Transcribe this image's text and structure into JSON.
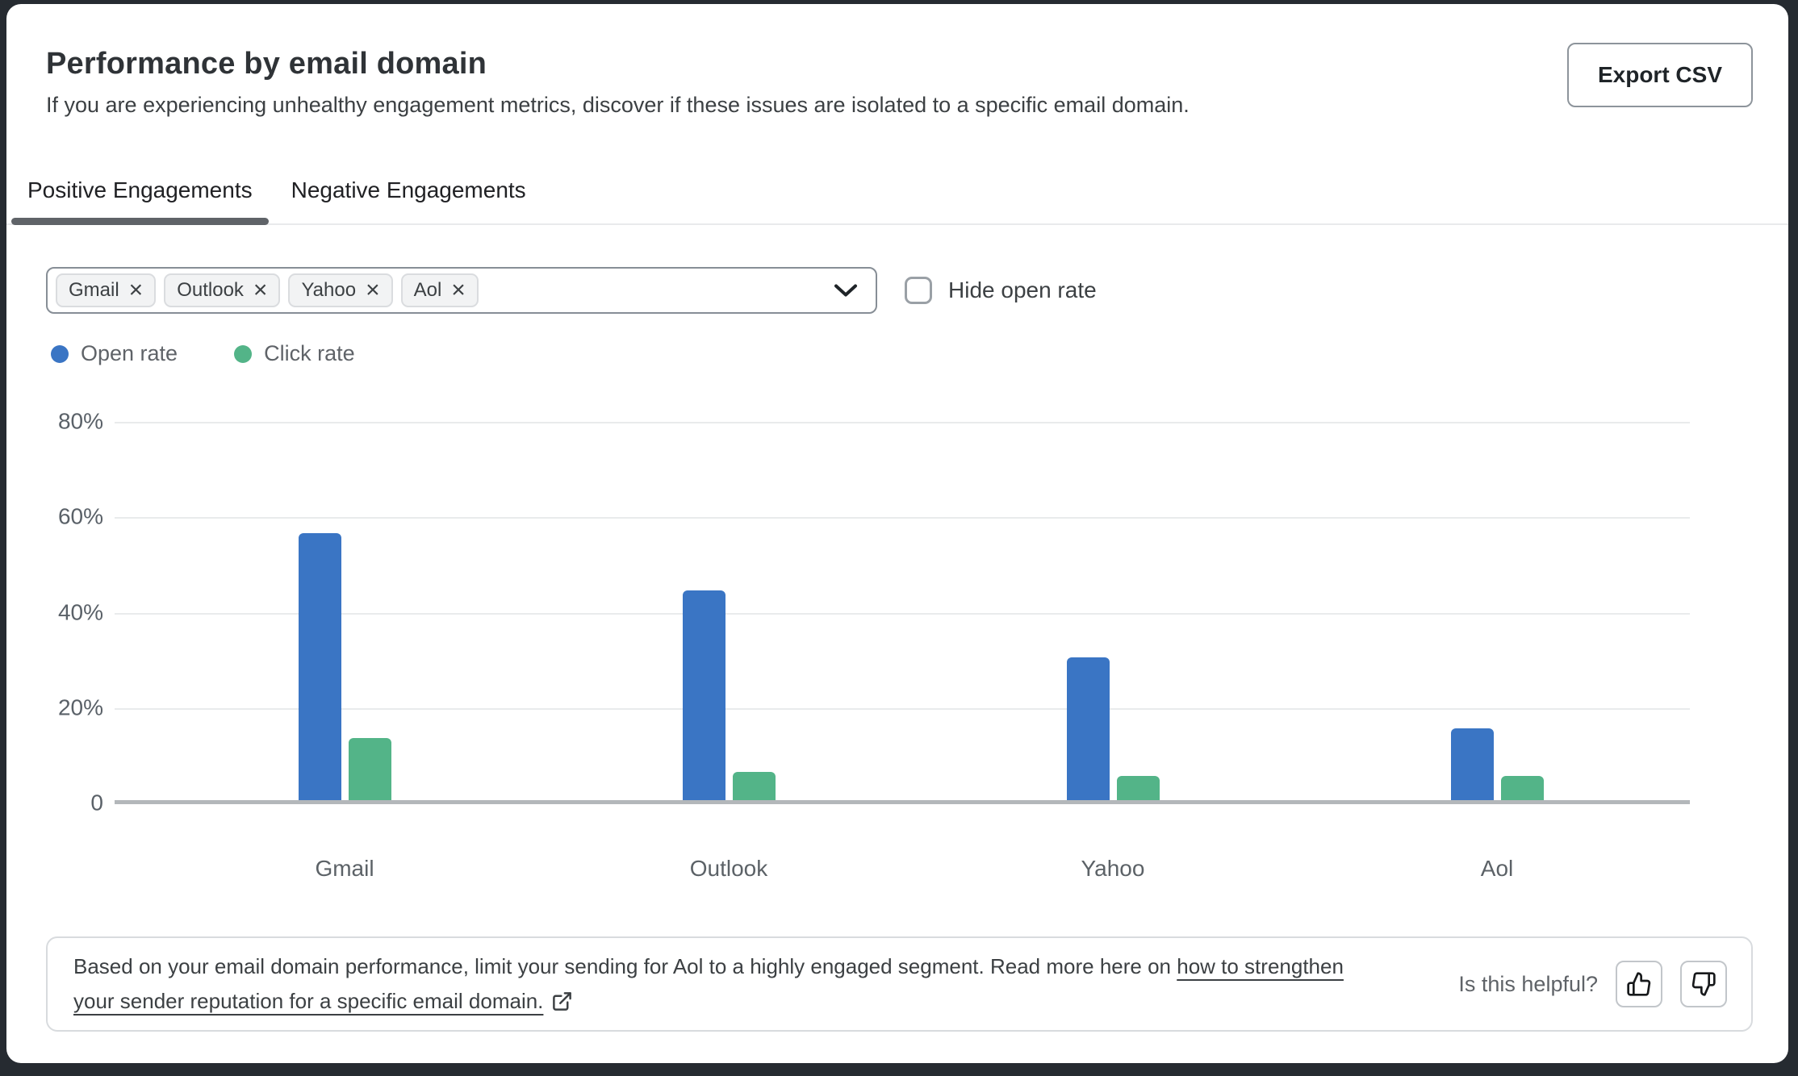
{
  "header": {
    "title": "Performance by email domain",
    "subtitle": "If you are experiencing unhealthy engagement metrics, discover if these issues are isolated to a specific email domain.",
    "export_label": "Export CSV"
  },
  "tabs": [
    {
      "label": "Positive Engagements",
      "active": true
    },
    {
      "label": "Negative Engagements",
      "active": false
    }
  ],
  "filter": {
    "selected_domains": [
      "Gmail",
      "Outlook",
      "Yahoo",
      "Aol"
    ],
    "hide_open_rate_label": "Hide open rate",
    "hide_open_rate_checked": false
  },
  "chart_data": {
    "type": "bar",
    "categories": [
      "Gmail",
      "Outlook",
      "Yahoo",
      "Aol"
    ],
    "series": [
      {
        "name": "Open rate",
        "color": "#3A75C4",
        "values": [
          56,
          44,
          30,
          15
        ]
      },
      {
        "name": "Click rate",
        "color": "#53B488",
        "values": [
          13,
          6,
          5,
          5
        ]
      }
    ],
    "xlabel": "",
    "ylabel": "",
    "ylim": [
      0,
      80
    ],
    "yticks": [
      {
        "label": "80%",
        "value": 80
      },
      {
        "label": "60%",
        "value": 60
      },
      {
        "label": "40%",
        "value": 40
      },
      {
        "label": "20%",
        "value": 20
      },
      {
        "label": "0",
        "value": 0
      }
    ],
    "grid": true,
    "legend_position": "top-left"
  },
  "footer": {
    "note_prefix": "Based on your email domain performance, limit your sending for Aol to a highly engaged segment. Read more here on ",
    "note_link": "how to strengthen your sender reputation for a specific email domain.",
    "helpful_label": "Is this helpful?"
  },
  "icons": {
    "chip_remove": "close-icon",
    "dropdown": "chevron-down-icon",
    "note_link": "external-link-icon",
    "helpful_positive": "thumbs-up-icon",
    "helpful_negative": "thumbs-down-icon"
  },
  "colors": {
    "open_rate": "#3A75C4",
    "click_rate": "#53B488",
    "active_tab_underline": "#5F6368",
    "gridline": "#E9EBEC",
    "axis_baseline": "#B3B7BA",
    "page_background": "#262B31",
    "card_background": "#FFFFFF"
  }
}
